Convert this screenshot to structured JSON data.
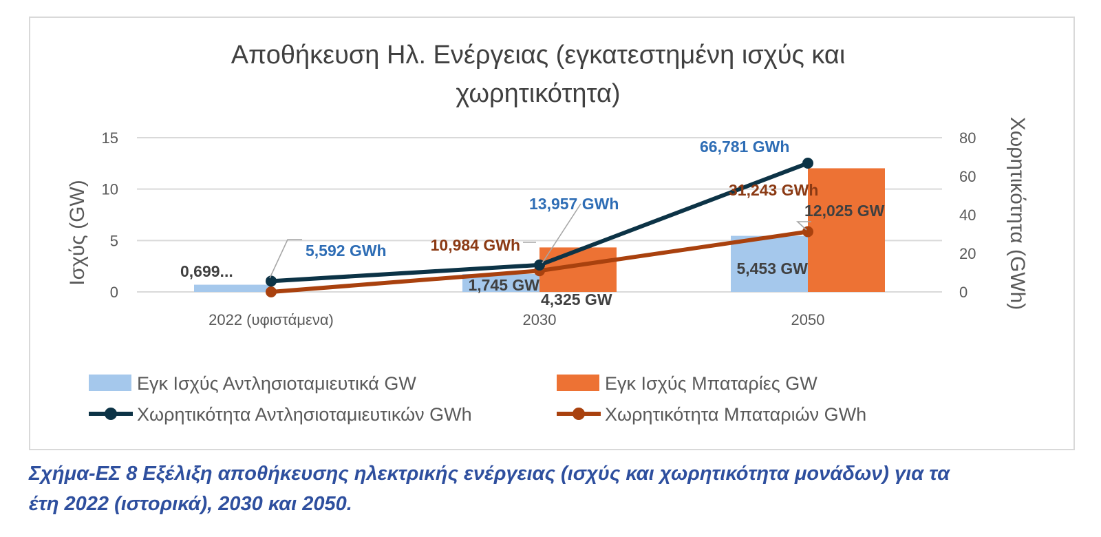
{
  "chart_data": {
    "type": "bar",
    "title": [
      "Αποθήκευση Ηλ. Ενέργειας (εγκατεστημένη ισχύς και",
      "χωρητικότητα)"
    ],
    "categories": [
      "2022 (υφιστάμενα)",
      "2030",
      "2050"
    ],
    "ylabel": "Ισχύς (GW)",
    "y2label": "Χωρητικότητα (GWh)",
    "ylim": [
      0,
      15
    ],
    "y2lim": [
      0,
      80
    ],
    "yticks": [
      0,
      5,
      10,
      15
    ],
    "y2ticks": [
      0,
      20,
      40,
      60,
      80
    ],
    "grid": true,
    "legend_position": "bottom",
    "series": [
      {
        "name": "Εγκ Ισχύς Αντλησιοταμιευτικά GW",
        "kind": "bar",
        "axis": "left",
        "color": "#a5c8ec",
        "values": [
          0.699,
          1.745,
          5.453
        ],
        "labels": [
          "0,699...",
          "1,745 GW",
          "5,453 GW"
        ],
        "label_color": "#404040"
      },
      {
        "name": "Εγκ Ισχύς Μπαταρίες GW",
        "kind": "bar",
        "axis": "left",
        "color": "#ed7234",
        "values": [
          0,
          4.325,
          12.025
        ],
        "labels": [
          "",
          "4,325 GW",
          "12,025 GW"
        ],
        "label_color": "#404040"
      },
      {
        "name": "Χωρητικότητα Αντλησιοταμιευτικών GWh",
        "kind": "line",
        "axis": "right",
        "color": "#0c3346",
        "values": [
          5.592,
          13.957,
          66.781
        ],
        "labels": [
          "5,592 GWh",
          "13,957 GWh",
          "66,781 GWh"
        ],
        "label_color": "#2e6db5"
      },
      {
        "name": "Χωρητικότητα Μπαταριών GWh",
        "kind": "line",
        "axis": "right",
        "color": "#a9410e",
        "values": [
          0,
          10.984,
          31.243
        ],
        "labels": [
          "",
          "10,984 GWh",
          "31,243 GWh"
        ],
        "label_color": "#8b3a14"
      }
    ]
  },
  "caption": {
    "line1": "Σχήμα-ΕΣ 8 Εξέλιξη αποθήκευσης ηλεκτρικής ενέργειας (ισχύς και χωρητικότητα μονάδων) για τα",
    "line2": "έτη 2022 (ιστορικά), 2030 και 2050."
  }
}
